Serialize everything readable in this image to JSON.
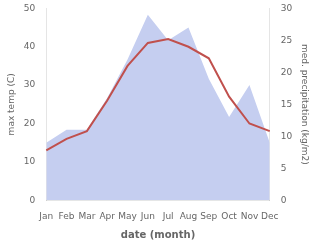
{
  "chart_data": {
    "type": "line",
    "categories": [
      "Jan",
      "Feb",
      "Mar",
      "Apr",
      "May",
      "Jun",
      "Jul",
      "Aug",
      "Sep",
      "Oct",
      "Nov",
      "Dec"
    ],
    "series": [
      {
        "type": "area",
        "axis": "y2",
        "color": "#c5cef0",
        "values": [
          9,
          11,
          11,
          16,
          22,
          29,
          25,
          27,
          19,
          13,
          18,
          9
        ]
      },
      {
        "type": "line",
        "axis": "y",
        "color": "#c0504d",
        "values": [
          13,
          16,
          18,
          26,
          35,
          41,
          42,
          40,
          37,
          27,
          20,
          18
        ]
      }
    ],
    "xlabel": "date (month)",
    "ylabel": "max temp (C)",
    "y2label": "med. precipitation (kg/m2)",
    "ylim": [
      0,
      50
    ],
    "yticks": [
      0,
      10,
      20,
      30,
      40,
      50
    ],
    "y2lim": [
      0,
      30
    ],
    "y2ticks": [
      0,
      5,
      10,
      15,
      20,
      25,
      30
    ],
    "grid": false
  }
}
